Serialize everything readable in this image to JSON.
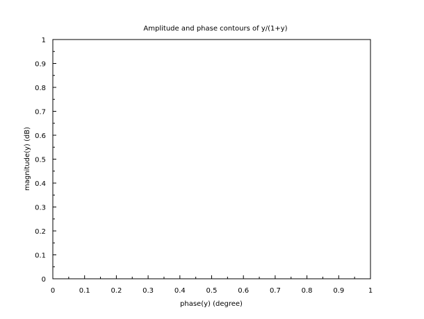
{
  "chart_data": {
    "type": "line",
    "title": "Amplitude and phase contours of y/(1+y)",
    "xlabel": "phase(y) (degree)",
    "ylabel": "magnitude(y) (dB)",
    "xlim": [
      0,
      1
    ],
    "ylim": [
      0,
      1
    ],
    "x_ticks": [
      "0",
      "0.1",
      "0.2",
      "0.3",
      "0.4",
      "0.5",
      "0.6",
      "0.7",
      "0.8",
      "0.9",
      "1"
    ],
    "y_ticks": [
      "0",
      "0.1",
      "0.2",
      "0.3",
      "0.4",
      "0.5",
      "0.6",
      "0.7",
      "0.8",
      "0.9",
      "1"
    ],
    "series": [],
    "grid": false,
    "frame_color": "#000000",
    "background": "#ffffff"
  }
}
